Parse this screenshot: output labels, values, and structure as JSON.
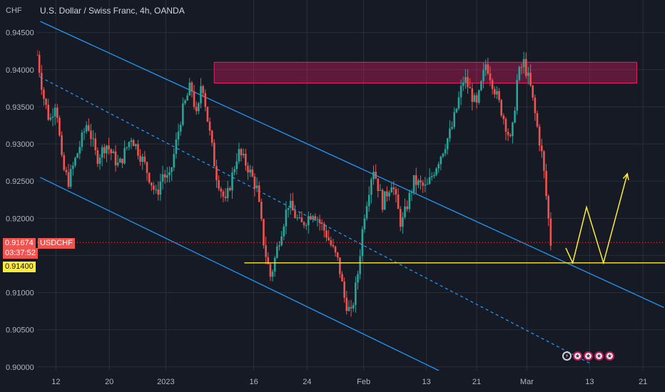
{
  "header": {
    "currency": "CHF",
    "title": "U.S. Dollar / Swiss Franc, 4h, OANDA"
  },
  "price_tags": {
    "last_price": "0.91674",
    "countdown": "03:37:52",
    "symbol": "USDCHF",
    "level": "0.91400"
  },
  "colors": {
    "background": "#161a25",
    "bull": "#26a69a",
    "bear": "#ef5350",
    "channel": "#2196f3",
    "zone": "#e91e63",
    "projection": "#ffeb3b"
  },
  "chart_data": {
    "type": "candlestick",
    "title": "U.S. Dollar / Swiss Franc, 4h, OANDA",
    "ylim": [
      0.8995,
      0.9465
    ],
    "y_ticks": [
      "0.94500",
      "0.94000",
      "0.93500",
      "0.93000",
      "0.92500",
      "0.92000",
      "0.91500",
      "0.91000",
      "0.90500",
      "0.90000"
    ],
    "y_tick_values": [
      0.945,
      0.94,
      0.935,
      0.93,
      0.925,
      0.92,
      0.915,
      0.91,
      0.905,
      0.9
    ],
    "x_ticks": [
      "12",
      "20",
      "2023",
      "16",
      "24",
      "Feb",
      "13",
      "21",
      "Mar",
      "13",
      "21"
    ],
    "x_tick_positions": [
      0.03,
      0.115,
      0.205,
      0.345,
      0.43,
      0.52,
      0.62,
      0.7,
      0.78,
      0.88,
      0.965
    ],
    "price_path": [
      [
        0.0,
        0.942
      ],
      [
        0.01,
        0.9365
      ],
      [
        0.02,
        0.933
      ],
      [
        0.03,
        0.936
      ],
      [
        0.04,
        0.927
      ],
      [
        0.05,
        0.925
      ],
      [
        0.065,
        0.929
      ],
      [
        0.08,
        0.933
      ],
      [
        0.095,
        0.928
      ],
      [
        0.11,
        0.93
      ],
      [
        0.13,
        0.927
      ],
      [
        0.15,
        0.931
      ],
      [
        0.17,
        0.9275
      ],
      [
        0.19,
        0.923
      ],
      [
        0.2,
        0.926
      ],
      [
        0.21,
        0.925
      ],
      [
        0.23,
        0.934
      ],
      [
        0.245,
        0.938
      ],
      [
        0.255,
        0.933
      ],
      [
        0.262,
        0.939
      ],
      [
        0.272,
        0.933
      ],
      [
        0.285,
        0.926
      ],
      [
        0.3,
        0.922
      ],
      [
        0.32,
        0.929
      ],
      [
        0.335,
        0.927
      ],
      [
        0.35,
        0.924
      ],
      [
        0.362,
        0.916
      ],
      [
        0.372,
        0.912
      ],
      [
        0.385,
        0.917
      ],
      [
        0.4,
        0.922
      ],
      [
        0.42,
        0.919
      ],
      [
        0.44,
        0.921
      ],
      [
        0.46,
        0.918
      ],
      [
        0.48,
        0.914
      ],
      [
        0.49,
        0.909
      ],
      [
        0.5,
        0.907
      ],
      [
        0.51,
        0.912
      ],
      [
        0.52,
        0.92
      ],
      [
        0.535,
        0.927
      ],
      [
        0.55,
        0.922
      ],
      [
        0.565,
        0.925
      ],
      [
        0.58,
        0.919
      ],
      [
        0.6,
        0.925
      ],
      [
        0.62,
        0.924
      ],
      [
        0.64,
        0.928
      ],
      [
        0.66,
        0.932
      ],
      [
        0.68,
        0.939
      ],
      [
        0.7,
        0.935
      ],
      [
        0.715,
        0.941
      ],
      [
        0.73,
        0.937
      ],
      [
        0.745,
        0.933
      ],
      [
        0.755,
        0.93
      ],
      [
        0.765,
        0.939
      ],
      [
        0.775,
        0.941
      ],
      [
        0.785,
        0.938
      ],
      [
        0.795,
        0.933
      ],
      [
        0.805,
        0.928
      ],
      [
        0.812,
        0.922
      ],
      [
        0.818,
        0.9167
      ]
    ],
    "zone": {
      "x_start": 0.282,
      "x_end": 0.955,
      "y_top": 0.941,
      "y_bottom": 0.9382
    },
    "horizontal_level": 0.914,
    "last_price": 0.91674,
    "channel_upper": [
      [
        0.005,
        0.9465
      ],
      [
        0.998,
        0.908
      ]
    ],
    "channel_lower": [
      [
        0.005,
        0.9255
      ],
      [
        0.64,
        0.8995
      ]
    ],
    "channel_mid": [
      [
        0.005,
        0.939
      ],
      [
        0.88,
        0.9005
      ]
    ],
    "projection": [
      [
        0.842,
        0.916
      ],
      [
        0.853,
        0.914
      ],
      [
        0.875,
        0.9215
      ],
      [
        0.902,
        0.914
      ],
      [
        0.94,
        0.926
      ]
    ]
  }
}
